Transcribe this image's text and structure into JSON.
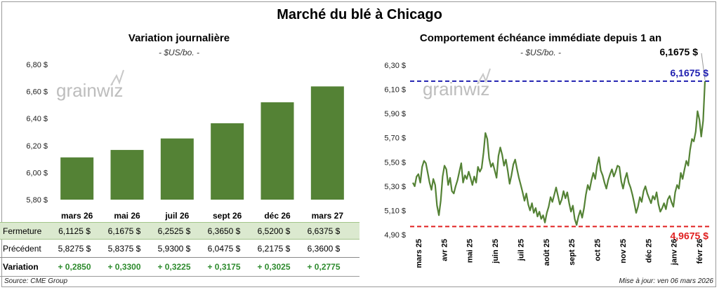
{
  "main_title": "Marché du blé à Chicago",
  "left_panel": {
    "title": "Variation journalière",
    "unit": "- $US/bo. -",
    "table": {
      "row_labels": {
        "close": "Fermeture",
        "previous": "Précédent",
        "change": "Variation"
      },
      "close": [
        "6,1125  $",
        "6,1675  $",
        "6,2525  $",
        "6,3650  $",
        "6,5200  $",
        "6,6375  $"
      ],
      "previous": [
        "5,8275  $",
        "5,8375  $",
        "5,9300  $",
        "6,0475  $",
        "6,2175  $",
        "6,3600  $"
      ],
      "change": [
        "+ 0,2850",
        "+ 0,3300",
        "+ 0,3225",
        "+ 0,3175",
        "+ 0,3025",
        "+ 0,2775"
      ]
    }
  },
  "right_panel": {
    "title": "Comportement  échéance immédiate depuis 1 an",
    "unit": "- $US/bo. -",
    "last_value_label": "6,1675 $",
    "max_label": "6,1675  $",
    "min_label": "4,9675  $"
  },
  "watermark": "grainwiz",
  "footer": {
    "source": "Source: CME Group",
    "updated": "Mise à jour: ven 06 mars 2026"
  },
  "colors": {
    "bar": "#548235",
    "line": "#548235",
    "max_line": "#2020b0",
    "min_line": "#e02020",
    "positive": "#2e8b2e",
    "table_highlight": "#dbe9cf"
  },
  "chart_data": [
    {
      "type": "bar",
      "title": "Variation journalière",
      "ylabel": "",
      "categories": [
        "mars 26",
        "mai 26",
        "juil 26",
        "sept 26",
        "déc 26",
        "mars 27"
      ],
      "values": [
        6.1125,
        6.1675,
        6.2525,
        6.365,
        6.52,
        6.6375
      ],
      "ylim": [
        5.8,
        6.8
      ],
      "yticks": [
        5.8,
        6.0,
        6.2,
        6.4,
        6.6,
        6.8
      ],
      "ytick_labels": [
        "5,80 $",
        "6,00 $",
        "6,20 $",
        "6,40 $",
        "6,60 $",
        "6,80 $"
      ],
      "grid": false,
      "legend": "none"
    },
    {
      "type": "line",
      "title": "Comportement  échéance immédiate depuis 1 an",
      "ylabel": "",
      "x_ticks": [
        "mars 25",
        "avr 25",
        "mai 25",
        "juin 25",
        "juil 25",
        "août 25",
        "sept 25",
        "oct 25",
        "nov 25",
        "déc 25",
        "janv 26",
        "févr 26"
      ],
      "ylim": [
        4.9,
        6.3
      ],
      "yticks": [
        4.9,
        5.1,
        5.3,
        5.5,
        5.7,
        5.9,
        6.1,
        6.3
      ],
      "ytick_labels": [
        "4,90 $",
        "5,10 $",
        "5,30 $",
        "5,50 $",
        "5,70 $",
        "5,90 $",
        "6,10 $",
        "6,30 $"
      ],
      "max": 6.1675,
      "min": 4.9675,
      "series": [
        {
          "values": [
            5.33,
            5.3,
            5.38,
            5.4,
            5.33,
            5.46,
            5.51,
            5.49,
            5.41,
            5.33,
            5.27,
            5.36,
            5.31,
            5.14,
            5.06,
            5.18,
            5.38,
            5.47,
            5.44,
            5.31,
            5.37,
            5.26,
            5.24,
            5.3,
            5.35,
            5.42,
            5.49,
            5.33,
            5.39,
            5.36,
            5.42,
            5.37,
            5.31,
            5.38,
            5.33,
            5.46,
            5.42,
            5.45,
            5.58,
            5.74,
            5.69,
            5.53,
            5.46,
            5.49,
            5.43,
            5.37,
            5.55,
            5.62,
            5.56,
            5.47,
            5.52,
            5.43,
            5.32,
            5.39,
            5.48,
            5.52,
            5.44,
            5.37,
            5.31,
            5.25,
            5.18,
            5.24,
            5.15,
            5.1,
            5.16,
            5.08,
            5.12,
            5.05,
            5.09,
            5.03,
            5.06,
            5.0,
            5.08,
            5.13,
            5.21,
            5.17,
            5.23,
            5.29,
            5.22,
            5.15,
            5.19,
            5.26,
            5.2,
            5.25,
            5.16,
            5.09,
            5.14,
            5.03,
            4.98,
            5.05,
            5.1,
            5.04,
            5.12,
            5.23,
            5.31,
            5.27,
            5.35,
            5.41,
            5.36,
            5.47,
            5.54,
            5.43,
            5.39,
            5.33,
            5.28,
            5.35,
            5.4,
            5.44,
            5.38,
            5.42,
            5.47,
            5.46,
            5.34,
            5.28,
            5.36,
            5.41,
            5.33,
            5.29,
            5.23,
            5.16,
            5.08,
            5.13,
            5.21,
            5.17,
            5.26,
            5.3,
            5.24,
            5.2,
            5.16,
            5.22,
            5.19,
            5.25,
            5.15,
            5.09,
            5.12,
            5.16,
            5.11,
            5.19,
            5.22,
            5.17,
            5.13,
            5.25,
            5.31,
            5.28,
            5.41,
            5.36,
            5.44,
            5.51,
            5.47,
            5.6,
            5.69,
            5.67,
            5.75,
            5.92,
            5.85,
            5.71,
            5.84,
            6.1675
          ]
        }
      ],
      "grid": false,
      "legend": "none"
    }
  ]
}
